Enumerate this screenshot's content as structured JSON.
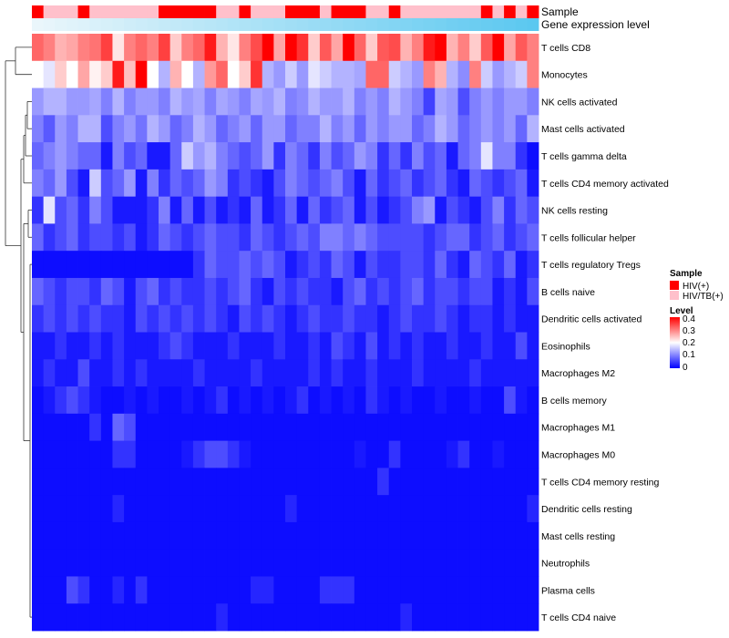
{
  "chart_data": {
    "type": "heatmap",
    "title": "",
    "annotation_labels": {
      "sample": "Sample",
      "gene_expression": "Gene expression level"
    },
    "rows": [
      "T cells CD8",
      "Monocytes",
      "NK cells activated",
      "Mast cells activated",
      "T cells gamma delta",
      "T cells CD4 memory activated",
      "NK cells resting",
      "T cells follicular helper",
      "T cells regulatory  Tregs",
      "B cells naive",
      "Dendritic cells activated",
      "Eosinophils",
      "Macrophages M2",
      "B cells memory",
      "Macrophages M1",
      "Macrophages M0",
      "T cells CD4 memory resting",
      "Dendritic cells resting",
      "Mast cells resting",
      "Neutrophils",
      "Plasma cells",
      "T cells CD4 naive"
    ],
    "n_columns": 44,
    "sample_groups": [
      0,
      1,
      1,
      1,
      0,
      1,
      1,
      1,
      1,
      1,
      1,
      0,
      0,
      0,
      0,
      0,
      1,
      1,
      0,
      1,
      1,
      1,
      0,
      0,
      0,
      1,
      0,
      0,
      0,
      1,
      1,
      0,
      1,
      1,
      1,
      1,
      1,
      1,
      1,
      0,
      1,
      0,
      1,
      0
    ],
    "legend": {
      "sample_title": "Sample",
      "groups": [
        {
          "label": "HIV(+)",
          "color": "#ff0000"
        },
        {
          "label": "HIV/TB(+)",
          "color": "#ffc0cb"
        }
      ],
      "level_title": "Level",
      "level_ticks": [
        "0.4",
        "0.3",
        "0.2",
        "0.1",
        "0"
      ],
      "range": [
        0,
        0.4
      ]
    },
    "colors": {
      "low": "#0000ff",
      "mid": "#ffffff",
      "high": "#ff0000",
      "expr_start": "#eaf6fb",
      "expr_end": "#5bc8f0"
    },
    "values": [
      [
        0.32,
        0.3,
        0.26,
        0.27,
        0.3,
        0.31,
        0.35,
        0.22,
        0.3,
        0.32,
        0.3,
        0.35,
        0.24,
        0.3,
        0.32,
        0.38,
        0.26,
        0.22,
        0.3,
        0.34,
        0.4,
        0.27,
        0.4,
        0.36,
        0.24,
        0.33,
        0.27,
        0.4,
        0.32,
        0.24,
        0.33,
        0.34,
        0.26,
        0.3,
        0.38,
        0.4,
        0.26,
        0.3,
        0.24,
        0.33,
        0.4,
        0.27,
        0.33,
        0.3
      ],
      [
        0.2,
        0.18,
        0.24,
        0.2,
        0.27,
        0.21,
        0.24,
        0.38,
        0.25,
        0.4,
        0.2,
        0.14,
        0.26,
        0.2,
        0.14,
        0.28,
        0.32,
        0.2,
        0.24,
        0.36,
        0.14,
        0.12,
        0.16,
        0.12,
        0.18,
        0.16,
        0.14,
        0.14,
        0.13,
        0.32,
        0.32,
        0.16,
        0.14,
        0.12,
        0.3,
        0.26,
        0.14,
        0.11,
        0.3,
        0.16,
        0.12,
        0.14,
        0.16,
        0.3
      ],
      [
        0.12,
        0.14,
        0.14,
        0.12,
        0.12,
        0.13,
        0.1,
        0.14,
        0.1,
        0.12,
        0.12,
        0.1,
        0.14,
        0.12,
        0.13,
        0.1,
        0.13,
        0.12,
        0.1,
        0.13,
        0.12,
        0.14,
        0.1,
        0.11,
        0.14,
        0.12,
        0.12,
        0.14,
        0.1,
        0.12,
        0.1,
        0.14,
        0.12,
        0.1,
        0.05,
        0.13,
        0.12,
        0.06,
        0.1,
        0.12,
        0.1,
        0.12,
        0.12,
        0.1
      ],
      [
        0.1,
        0.07,
        0.12,
        0.1,
        0.14,
        0.14,
        0.06,
        0.1,
        0.12,
        0.09,
        0.14,
        0.12,
        0.08,
        0.1,
        0.14,
        0.12,
        0.08,
        0.1,
        0.12,
        0.08,
        0.12,
        0.12,
        0.08,
        0.1,
        0.1,
        0.14,
        0.1,
        0.12,
        0.08,
        0.12,
        0.1,
        0.12,
        0.12,
        0.08,
        0.1,
        0.14,
        0.12,
        0.08,
        0.1,
        0.12,
        0.1,
        0.12,
        0.08,
        0.14
      ],
      [
        0.08,
        0.1,
        0.12,
        0.1,
        0.08,
        0.08,
        0.02,
        0.1,
        0.06,
        0.08,
        0.02,
        0.02,
        0.08,
        0.16,
        0.12,
        0.14,
        0.1,
        0.08,
        0.06,
        0.08,
        0.12,
        0.04,
        0.1,
        0.08,
        0.04,
        0.1,
        0.06,
        0.08,
        0.12,
        0.1,
        0.04,
        0.08,
        0.04,
        0.1,
        0.06,
        0.08,
        0.02,
        0.08,
        0.1,
        0.18,
        0.1,
        0.1,
        0.04,
        0.01
      ],
      [
        0.1,
        0.08,
        0.12,
        0.06,
        0.02,
        0.16,
        0.06,
        0.08,
        0.12,
        0.02,
        0.1,
        0.04,
        0.08,
        0.06,
        0.08,
        0.12,
        0.1,
        0.04,
        0.06,
        0.04,
        0.02,
        0.06,
        0.1,
        0.08,
        0.06,
        0.08,
        0.1,
        0.06,
        0.02,
        0.08,
        0.04,
        0.06,
        0.08,
        0.04,
        0.06,
        0.08,
        0.04,
        0.02,
        0.08,
        0.06,
        0.04,
        0.06,
        0.08,
        0.02
      ],
      [
        0.04,
        0.18,
        0.06,
        0.08,
        0.04,
        0.1,
        0.06,
        0.02,
        0.02,
        0.02,
        0.04,
        0.1,
        0.02,
        0.08,
        0.02,
        0.06,
        0.02,
        0.04,
        0.02,
        0.08,
        0.02,
        0.04,
        0.08,
        0.02,
        0.08,
        0.04,
        0.06,
        0.08,
        0.02,
        0.06,
        0.02,
        0.04,
        0.06,
        0.1,
        0.12,
        0.02,
        0.06,
        0.04,
        0.02,
        0.06,
        0.1,
        0.04,
        0.08,
        0.06
      ],
      [
        0.08,
        0.04,
        0.06,
        0.08,
        0.04,
        0.06,
        0.06,
        0.04,
        0.06,
        0.02,
        0.04,
        0.08,
        0.06,
        0.04,
        0.06,
        0.08,
        0.06,
        0.06,
        0.04,
        0.08,
        0.06,
        0.04,
        0.06,
        0.08,
        0.06,
        0.1,
        0.1,
        0.08,
        0.1,
        0.08,
        0.06,
        0.06,
        0.06,
        0.06,
        0.04,
        0.06,
        0.08,
        0.08,
        0.04,
        0.06,
        0.08,
        0.04,
        0.06,
        0.08
      ],
      [
        0.01,
        0.01,
        0.01,
        0.01,
        0.01,
        0.01,
        0.01,
        0.01,
        0.01,
        0.01,
        0.01,
        0.01,
        0.01,
        0.01,
        0.04,
        0.08,
        0.06,
        0.06,
        0.08,
        0.06,
        0.08,
        0.06,
        0.02,
        0.04,
        0.06,
        0.04,
        0.08,
        0.06,
        0.02,
        0.06,
        0.04,
        0.04,
        0.06,
        0.06,
        0.04,
        0.08,
        0.04,
        0.02,
        0.08,
        0.06,
        0.04,
        0.08,
        0.02,
        0.04
      ],
      [
        0.08,
        0.06,
        0.04,
        0.06,
        0.06,
        0.04,
        0.08,
        0.06,
        0.02,
        0.06,
        0.08,
        0.04,
        0.06,
        0.04,
        0.04,
        0.06,
        0.04,
        0.06,
        0.08,
        0.04,
        0.02,
        0.06,
        0.04,
        0.06,
        0.04,
        0.04,
        0.02,
        0.06,
        0.08,
        0.04,
        0.06,
        0.04,
        0.06,
        0.08,
        0.04,
        0.06,
        0.06,
        0.04,
        0.06,
        0.06,
        0.02,
        0.04,
        0.02,
        0.06
      ],
      [
        0.04,
        0.06,
        0.04,
        0.06,
        0.04,
        0.06,
        0.04,
        0.04,
        0.02,
        0.06,
        0.04,
        0.06,
        0.04,
        0.06,
        0.04,
        0.06,
        0.04,
        0.02,
        0.06,
        0.04,
        0.06,
        0.04,
        0.02,
        0.04,
        0.06,
        0.04,
        0.04,
        0.06,
        0.04,
        0.04,
        0.02,
        0.04,
        0.06,
        0.04,
        0.04,
        0.06,
        0.04,
        0.02,
        0.04,
        0.04,
        0.02,
        0.04,
        0.02,
        0.02
      ],
      [
        0.02,
        0.02,
        0.04,
        0.02,
        0.02,
        0.04,
        0.02,
        0.04,
        0.02,
        0.02,
        0.02,
        0.04,
        0.06,
        0.04,
        0.02,
        0.02,
        0.02,
        0.04,
        0.02,
        0.02,
        0.02,
        0.04,
        0.02,
        0.02,
        0.04,
        0.02,
        0.06,
        0.04,
        0.02,
        0.06,
        0.02,
        0.04,
        0.02,
        0.04,
        0.02,
        0.02,
        0.04,
        0.02,
        0.02,
        0.04,
        0.02,
        0.02,
        0.06,
        0.02
      ],
      [
        0.02,
        0.04,
        0.02,
        0.02,
        0.06,
        0.02,
        0.02,
        0.04,
        0.02,
        0.04,
        0.02,
        0.02,
        0.02,
        0.02,
        0.04,
        0.02,
        0.02,
        0.02,
        0.02,
        0.04,
        0.02,
        0.02,
        0.02,
        0.02,
        0.04,
        0.02,
        0.04,
        0.02,
        0.02,
        0.04,
        0.02,
        0.02,
        0.02,
        0.04,
        0.02,
        0.02,
        0.02,
        0.02,
        0.04,
        0.02,
        0.02,
        0.02,
        0.02,
        0.02
      ],
      [
        0.01,
        0.02,
        0.04,
        0.06,
        0.04,
        0.02,
        0.01,
        0.01,
        0.02,
        0.01,
        0.02,
        0.01,
        0.01,
        0.02,
        0.01,
        0.02,
        0.04,
        0.01,
        0.02,
        0.01,
        0.02,
        0.01,
        0.02,
        0.04,
        0.01,
        0.02,
        0.01,
        0.02,
        0.01,
        0.04,
        0.02,
        0.01,
        0.02,
        0.01,
        0.01,
        0.02,
        0.01,
        0.01,
        0.02,
        0.01,
        0.01,
        0.06,
        0.02,
        0.01
      ],
      [
        0.01,
        0.01,
        0.01,
        0.01,
        0.01,
        0.04,
        0.01,
        0.08,
        0.06,
        0.01,
        0.01,
        0.01,
        0.01,
        0.01,
        0.01,
        0.01,
        0.01,
        0.01,
        0.01,
        0.01,
        0.01,
        0.01,
        0.01,
        0.01,
        0.01,
        0.01,
        0.01,
        0.01,
        0.01,
        0.01,
        0.01,
        0.01,
        0.01,
        0.01,
        0.01,
        0.01,
        0.01,
        0.01,
        0.01,
        0.01,
        0.01,
        0.01,
        0.01,
        0.01
      ],
      [
        0.01,
        0.01,
        0.01,
        0.01,
        0.01,
        0.01,
        0.01,
        0.04,
        0.04,
        0.01,
        0.01,
        0.01,
        0.01,
        0.02,
        0.04,
        0.06,
        0.06,
        0.04,
        0.02,
        0.01,
        0.01,
        0.01,
        0.01,
        0.01,
        0.01,
        0.01,
        0.01,
        0.01,
        0.02,
        0.01,
        0.01,
        0.04,
        0.01,
        0.01,
        0.01,
        0.01,
        0.02,
        0.04,
        0.01,
        0.01,
        0.02,
        0.01,
        0.01,
        0.01
      ],
      [
        0.01,
        0.01,
        0.01,
        0.01,
        0.01,
        0.01,
        0.01,
        0.01,
        0.01,
        0.01,
        0.01,
        0.01,
        0.01,
        0.01,
        0.01,
        0.01,
        0.01,
        0.01,
        0.01,
        0.01,
        0.01,
        0.01,
        0.01,
        0.01,
        0.01,
        0.01,
        0.01,
        0.01,
        0.01,
        0.01,
        0.04,
        0.01,
        0.01,
        0.01,
        0.01,
        0.01,
        0.01,
        0.01,
        0.01,
        0.01,
        0.01,
        0.01,
        0.01,
        0.01
      ],
      [
        0.01,
        0.01,
        0.01,
        0.01,
        0.01,
        0.01,
        0.01,
        0.03,
        0.01,
        0.01,
        0.01,
        0.01,
        0.01,
        0.01,
        0.01,
        0.01,
        0.01,
        0.01,
        0.01,
        0.01,
        0.01,
        0.01,
        0.03,
        0.01,
        0.01,
        0.01,
        0.01,
        0.01,
        0.01,
        0.01,
        0.01,
        0.01,
        0.01,
        0.01,
        0.01,
        0.01,
        0.01,
        0.01,
        0.01,
        0.01,
        0.01,
        0.01,
        0.01,
        0.03
      ],
      [
        0.01,
        0.01,
        0.01,
        0.01,
        0.01,
        0.01,
        0.01,
        0.01,
        0.01,
        0.01,
        0.01,
        0.01,
        0.01,
        0.01,
        0.01,
        0.01,
        0.01,
        0.01,
        0.01,
        0.01,
        0.01,
        0.01,
        0.01,
        0.01,
        0.01,
        0.01,
        0.01,
        0.01,
        0.01,
        0.01,
        0.01,
        0.01,
        0.01,
        0.01,
        0.01,
        0.01,
        0.01,
        0.01,
        0.01,
        0.01,
        0.01,
        0.01,
        0.01,
        0.01
      ],
      [
        0.01,
        0.01,
        0.01,
        0.01,
        0.01,
        0.01,
        0.01,
        0.01,
        0.01,
        0.01,
        0.01,
        0.01,
        0.01,
        0.01,
        0.01,
        0.01,
        0.01,
        0.01,
        0.01,
        0.01,
        0.01,
        0.01,
        0.01,
        0.01,
        0.01,
        0.01,
        0.01,
        0.01,
        0.01,
        0.01,
        0.01,
        0.01,
        0.01,
        0.01,
        0.01,
        0.01,
        0.01,
        0.01,
        0.01,
        0.01,
        0.01,
        0.01,
        0.01,
        0.01
      ],
      [
        0.01,
        0.01,
        0.01,
        0.06,
        0.04,
        0.01,
        0.01,
        0.03,
        0.01,
        0.04,
        0.01,
        0.01,
        0.01,
        0.01,
        0.01,
        0.01,
        0.01,
        0.01,
        0.01,
        0.03,
        0.03,
        0.01,
        0.01,
        0.01,
        0.01,
        0.04,
        0.04,
        0.04,
        0.01,
        0.01,
        0.01,
        0.01,
        0.01,
        0.01,
        0.01,
        0.01,
        0.01,
        0.01,
        0.01,
        0.01,
        0.01,
        0.01,
        0.01,
        0.01
      ],
      [
        0.01,
        0.01,
        0.01,
        0.01,
        0.01,
        0.01,
        0.01,
        0.01,
        0.01,
        0.01,
        0.01,
        0.01,
        0.01,
        0.01,
        0.01,
        0.01,
        0.03,
        0.01,
        0.01,
        0.01,
        0.01,
        0.01,
        0.01,
        0.01,
        0.01,
        0.01,
        0.01,
        0.01,
        0.01,
        0.01,
        0.01,
        0.01,
        0.03,
        0.01,
        0.01,
        0.01,
        0.01,
        0.01,
        0.01,
        0.01,
        0.01,
        0.01,
        0.01,
        0.01
      ]
    ]
  }
}
